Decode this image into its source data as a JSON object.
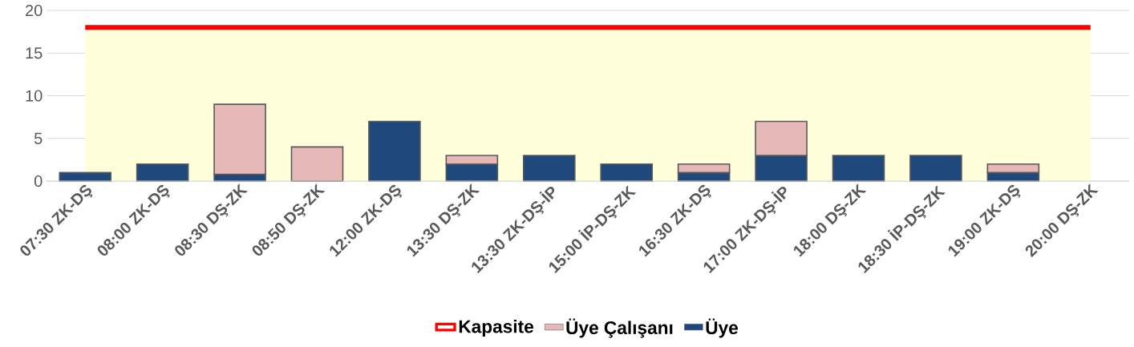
{
  "chart_data": {
    "type": "bar",
    "stacked": true,
    "categories": [
      "07:30 ZK-DŞ",
      "08:00 ZK-DŞ",
      "08:30 DŞ-ZK",
      "08:50 DŞ-ZK",
      "12:00 ZK-DŞ",
      "13:30 DŞ-ZK",
      "13:30 ZK-DŞ-İP",
      "15:00 İP-DŞ-ZK",
      "16:30 ZK-DŞ",
      "17:00 ZK-DŞ-İP",
      "18:00 DŞ-ZK",
      "18:30 İP-DŞ-ZK",
      "19:00 ZK-DŞ",
      "20:00 DŞ-ZK"
    ],
    "series": [
      {
        "name": "Kapasite",
        "type": "line",
        "color": "#ff0000",
        "values": [
          18,
          18,
          18,
          18,
          18,
          18,
          18,
          18,
          18,
          18,
          18,
          18,
          18,
          18
        ]
      },
      {
        "name": "Üye",
        "color": "#1f497d",
        "values": [
          1,
          2,
          0.8,
          0,
          7,
          2,
          3,
          2,
          1,
          3,
          3,
          3,
          1,
          0
        ]
      },
      {
        "name": "Üye Çalışanı",
        "color": "#e6b9b8",
        "values": [
          0,
          0,
          8.2,
          4,
          0,
          1,
          0,
          0,
          1,
          4,
          0,
          0,
          1,
          0
        ]
      }
    ],
    "ylim": [
      0,
      20
    ],
    "yticks": [
      0,
      5,
      10,
      15,
      20
    ],
    "grid": "y",
    "legend": "bottom"
  }
}
